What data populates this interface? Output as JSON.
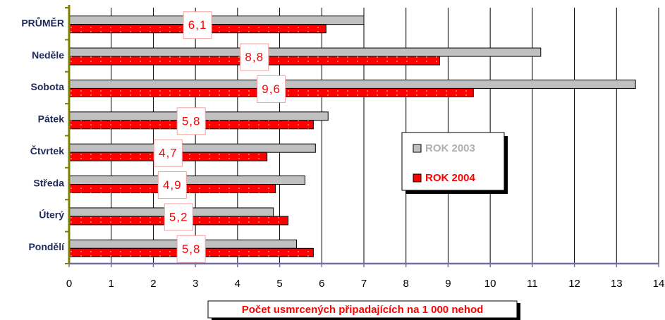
{
  "chart_data": {
    "type": "hbar",
    "categories": [
      "PRŮMĚR",
      "Neděle",
      "Sobota",
      "Pátek",
      "Čtvrtek",
      "Středa",
      "Úterý",
      "Pondělí"
    ],
    "series": [
      {
        "name": "ROK 2003",
        "color": "#c0c0c0",
        "values": [
          7.0,
          11.2,
          13.45,
          6.15,
          5.85,
          5.6,
          4.85,
          5.4
        ]
      },
      {
        "name": "ROK 2004",
        "color": "#ff0000",
        "values": [
          6.1,
          8.8,
          9.6,
          5.8,
          4.7,
          4.9,
          5.2,
          5.8
        ],
        "value_labels": [
          "6,1",
          "8,8",
          "9,6",
          "5,8",
          "4,7",
          "4,9",
          "5,2",
          "5,8"
        ]
      }
    ],
    "xlim": [
      0,
      14
    ],
    "xticks": [
      0,
      1,
      2,
      3,
      4,
      5,
      6,
      7,
      8,
      9,
      10,
      11,
      12,
      13,
      14
    ],
    "x_label": "Počet usmrcených připadajících na 1 000 nehod",
    "grid": true,
    "legend": "right"
  }
}
